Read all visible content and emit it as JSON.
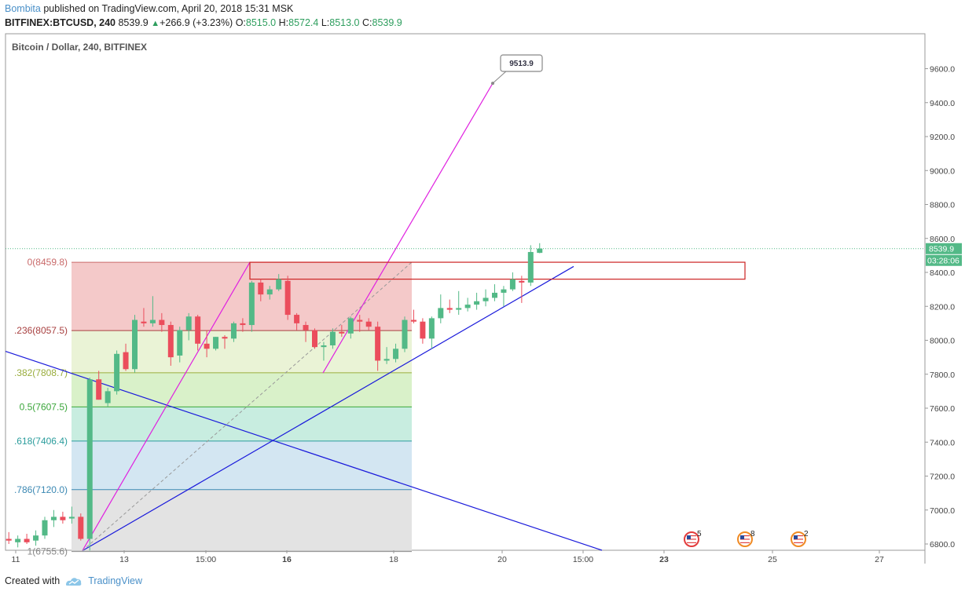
{
  "header": {
    "author": "Bombita",
    "published_text": "published on TradingView.com, April 20, 2018 15:31 MSK",
    "symbol": "BITFINEX:BTCUSD, 240",
    "last": "8539.9",
    "change": "+266.9 (+3.23%)",
    "o_label": "O:",
    "o": "8515.0",
    "h_label": "H:",
    "h": "8572.4",
    "l_label": "L:",
    "l": "8513.0",
    "c_label": "C:",
    "c": "8539.9"
  },
  "footer": {
    "created_with": "Created with",
    "brand": "TradingView"
  },
  "colors": {
    "up": "#53b987",
    "down": "#eb4d5c",
    "trend_blue": "#1a1adb",
    "pitchfork": "#e020e0",
    "rect": "#cc2222"
  },
  "chart_data": {
    "type": "candlestick",
    "title": "Bitcoin / Dollar, 240, BITFINEX",
    "ylim": [
      6750,
      9800
    ],
    "y_ticks": [
      6800,
      7000,
      7200,
      7400,
      7600,
      7800,
      8000,
      8200,
      8400,
      8600,
      9200,
      9400,
      9600
    ],
    "y_tick_labels": [
      "6800.0",
      "7000.0",
      "7200.0",
      "7400.0",
      "7600.0",
      "7800.0",
      "8000.0",
      "8200.0",
      "8400.0",
      "8600.0",
      "9200.0",
      "9400.0",
      "9600.0"
    ],
    "extra_y_ticks": [
      8800,
      9000
    ],
    "extra_y_tick_labels": [
      "8800.0",
      "9000.0"
    ],
    "x_tick_labels": [
      "11",
      "13",
      "15:00",
      "16",
      "18",
      "20",
      "15:00",
      "23",
      "25",
      "27"
    ],
    "last_price_label": "8539.9",
    "countdown_label": "03:28:06",
    "candles": [
      [
        6830,
        6870,
        6800,
        6820
      ],
      [
        6810,
        6850,
        6780,
        6830
      ],
      [
        6830,
        6860,
        6800,
        6810
      ],
      [
        6820,
        6880,
        6790,
        6850
      ],
      [
        6850,
        6960,
        6830,
        6940
      ],
      [
        6940,
        7000,
        6900,
        6960
      ],
      [
        6960,
        6990,
        6920,
        6940
      ],
      [
        6950,
        7020,
        6920,
        6960
      ],
      [
        6960,
        6980,
        6820,
        6830
      ],
      [
        6830,
        7780,
        6760,
        7770
      ],
      [
        7770,
        7820,
        7650,
        7650
      ],
      [
        7630,
        7720,
        7610,
        7700
      ],
      [
        7700,
        7940,
        7680,
        7920
      ],
      [
        7930,
        7980,
        7820,
        7830
      ],
      [
        7830,
        8150,
        7810,
        8120
      ],
      [
        8110,
        8190,
        8080,
        8100
      ],
      [
        8100,
        8260,
        8080,
        8120
      ],
      [
        8120,
        8160,
        8050,
        8090
      ],
      [
        8090,
        8110,
        7850,
        7900
      ],
      [
        7910,
        8080,
        7870,
        8060
      ],
      [
        8060,
        8160,
        8000,
        8140
      ],
      [
        8140,
        8150,
        7940,
        7980
      ],
      [
        7980,
        8060,
        7900,
        7950
      ],
      [
        7950,
        8020,
        7940,
        8020
      ],
      [
        8020,
        8030,
        7950,
        8010
      ],
      [
        8010,
        8110,
        7990,
        8100
      ],
      [
        8100,
        8130,
        8050,
        8090
      ],
      [
        8090,
        8350,
        8050,
        8340
      ],
      [
        8340,
        8360,
        8230,
        8270
      ],
      [
        8270,
        8320,
        8240,
        8300
      ],
      [
        8300,
        8390,
        8290,
        8360
      ],
      [
        8350,
        8380,
        8120,
        8150
      ],
      [
        8150,
        8160,
        8060,
        8100
      ],
      [
        8090,
        8110,
        7990,
        8060
      ],
      [
        8060,
        8070,
        7950,
        7960
      ],
      [
        7960,
        7990,
        7880,
        7970
      ],
      [
        7970,
        8070,
        7950,
        8050
      ],
      [
        8050,
        8090,
        8020,
        8040
      ],
      [
        8040,
        8140,
        8010,
        8130
      ],
      [
        8120,
        8150,
        8050,
        8110
      ],
      [
        8110,
        8130,
        8060,
        8080
      ],
      [
        8080,
        8110,
        7820,
        7880
      ],
      [
        7880,
        7960,
        7860,
        7890
      ],
      [
        7890,
        7980,
        7870,
        7950
      ],
      [
        7950,
        8140,
        7930,
        8120
      ],
      [
        8120,
        8180,
        8100,
        8110
      ],
      [
        8110,
        8130,
        7980,
        8010
      ],
      [
        8010,
        8140,
        7950,
        8130
      ],
      [
        8130,
        8270,
        8100,
        8190
      ],
      [
        8190,
        8240,
        8160,
        8180
      ],
      [
        8180,
        8290,
        8150,
        8190
      ],
      [
        8190,
        8250,
        8170,
        8210
      ],
      [
        8210,
        8280,
        8180,
        8230
      ],
      [
        8230,
        8300,
        8200,
        8250
      ],
      [
        8250,
        8330,
        8230,
        8280
      ],
      [
        8280,
        8320,
        8200,
        8300
      ],
      [
        8300,
        8400,
        8290,
        8360
      ],
      [
        8350,
        8380,
        8220,
        8340
      ],
      [
        8340,
        8560,
        8320,
        8520
      ],
      [
        8515,
        8572,
        8513,
        8540
      ]
    ],
    "fib_levels": [
      {
        "label": "0(8459.8)",
        "value": 8459.8,
        "color": "#c96a6a",
        "fill": "#f4c9c9"
      },
      {
        "label": ".236(8057.5)",
        "value": 8057.5,
        "color": "#a84040",
        "fill": "#eaf3d6"
      },
      {
        "label": ".382(7808.7)",
        "value": 7808.7,
        "color": "#9aad3d",
        "fill": "#d9f1c9"
      },
      {
        "label": "0.5(7607.5)",
        "value": 7607.5,
        "color": "#3ba63b",
        "fill": "#c8ede0"
      },
      {
        "label": ".618(7406.4)",
        "value": 7406.4,
        "color": "#2a9c9c",
        "fill": "#d3e6f2"
      },
      {
        "label": ".786(7120.0)",
        "value": 7120.0,
        "color": "#3b88b3",
        "fill": "#e3e3e3"
      },
      {
        "label": "1(6755.6)",
        "value": 6755.6,
        "color": "#888888",
        "fill": null
      }
    ],
    "annotations": [
      {
        "type": "callout",
        "text": "9513.9",
        "value": 9513.9
      }
    ],
    "events": [
      {
        "count": "5"
      },
      {
        "count": "8"
      },
      {
        "count": "2"
      }
    ]
  }
}
